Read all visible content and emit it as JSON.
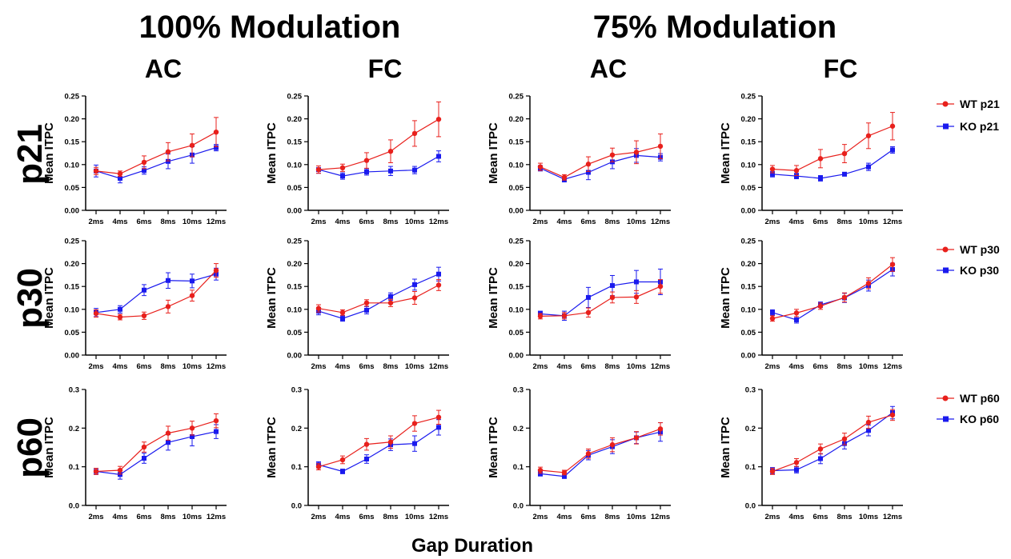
{
  "header": {
    "modulation": [
      "100% Modulation",
      "75% Modulation"
    ],
    "regions": [
      "AC",
      "FC",
      "AC",
      "FC"
    ],
    "ages": [
      "p21",
      "p30",
      "p60"
    ]
  },
  "xlabel_global": "Gap Duration",
  "colors": {
    "wt": "#e8201c",
    "ko": "#1a1aee"
  },
  "legends": [
    [
      "WT p21",
      "KO p21"
    ],
    [
      "WT p30",
      "KO p30"
    ],
    [
      "WT p60",
      "KO p60"
    ]
  ],
  "chart_data": [
    {
      "type": "line",
      "panel": "100% AC p21",
      "categories": [
        "2ms",
        "4ms",
        "6ms",
        "8ms",
        "10ms",
        "12ms"
      ],
      "ylabel": "Mean ITPC",
      "ylim": [
        0,
        0.25
      ],
      "yticks": [
        "0.00",
        "0.05",
        "0.10",
        "0.15",
        "0.20",
        "0.25"
      ],
      "series": [
        {
          "name": "WT p21",
          "values": [
            0.086,
            0.08,
            0.105,
            0.128,
            0.142,
            0.171
          ],
          "err": [
            0.008,
            0.006,
            0.014,
            0.02,
            0.025,
            0.032
          ]
        },
        {
          "name": "KO p21",
          "values": [
            0.086,
            0.07,
            0.087,
            0.107,
            0.121,
            0.137
          ],
          "err": [
            0.013,
            0.01,
            0.008,
            0.016,
            0.018,
            0.007
          ]
        }
      ]
    },
    {
      "type": "line",
      "panel": "100% FC p21",
      "categories": [
        "2ms",
        "4ms",
        "6ms",
        "8ms",
        "10ms",
        "12ms"
      ],
      "ylabel": "Mean ITPC",
      "ylim": [
        0,
        0.25
      ],
      "yticks": [
        "0.00",
        "0.05",
        "0.10",
        "0.15",
        "0.20",
        "0.25"
      ],
      "series": [
        {
          "name": "WT p21",
          "values": [
            0.089,
            0.093,
            0.109,
            0.129,
            0.168,
            0.199
          ],
          "err": [
            0.008,
            0.008,
            0.017,
            0.025,
            0.028,
            0.038
          ]
        },
        {
          "name": "KO p21",
          "values": [
            0.089,
            0.075,
            0.084,
            0.086,
            0.088,
            0.118
          ],
          "err": [
            0.008,
            0.007,
            0.007,
            0.01,
            0.008,
            0.012
          ]
        }
      ]
    },
    {
      "type": "line",
      "panel": "75% AC p21",
      "categories": [
        "2ms",
        "4ms",
        "6ms",
        "8ms",
        "10ms",
        "12ms"
      ],
      "ylabel": "Mean ITPC",
      "ylim": [
        0,
        0.25
      ],
      "yticks": [
        "0.00",
        "0.05",
        "0.10",
        "0.15",
        "0.20",
        "0.25"
      ],
      "series": [
        {
          "name": "WT p21",
          "values": [
            0.095,
            0.072,
            0.101,
            0.121,
            0.127,
            0.14
          ],
          "err": [
            0.008,
            0.006,
            0.016,
            0.015,
            0.025,
            0.027
          ]
        },
        {
          "name": "KO p21",
          "values": [
            0.092,
            0.068,
            0.083,
            0.106,
            0.12,
            0.116
          ],
          "err": [
            0.006,
            0.006,
            0.016,
            0.015,
            0.015,
            0.008
          ]
        }
      ]
    },
    {
      "type": "line",
      "panel": "75% FC p21",
      "categories": [
        "2ms",
        "4ms",
        "6ms",
        "8ms",
        "10ms",
        "12ms"
      ],
      "ylabel": "Mean ITPC",
      "ylim": [
        0,
        0.25
      ],
      "yticks": [
        "0.00",
        "0.05",
        "0.10",
        "0.15",
        "0.20",
        "0.25"
      ],
      "series": [
        {
          "name": "WT p21",
          "values": [
            0.09,
            0.087,
            0.113,
            0.124,
            0.163,
            0.184
          ],
          "err": [
            0.008,
            0.011,
            0.02,
            0.02,
            0.028,
            0.03
          ]
        },
        {
          "name": "KO p21",
          "values": [
            0.079,
            0.075,
            0.07,
            0.079,
            0.095,
            0.132
          ],
          "err": [
            0.006,
            0.006,
            0.006,
            0.004,
            0.008,
            0.007
          ]
        }
      ]
    },
    {
      "type": "line",
      "panel": "100% AC p30",
      "categories": [
        "2ms",
        "4ms",
        "6ms",
        "8ms",
        "10ms",
        "12ms"
      ],
      "ylabel": "Mean ITPC",
      "ylim": [
        0,
        0.25
      ],
      "yticks": [
        "0.00",
        "0.05",
        "0.10",
        "0.15",
        "0.20",
        "0.25"
      ],
      "series": [
        {
          "name": "WT p30",
          "values": [
            0.091,
            0.083,
            0.086,
            0.106,
            0.13,
            0.185
          ],
          "err": [
            0.008,
            0.006,
            0.008,
            0.014,
            0.012,
            0.015
          ]
        },
        {
          "name": "KO p30",
          "values": [
            0.093,
            0.1,
            0.142,
            0.163,
            0.162,
            0.177
          ],
          "err": [
            0.009,
            0.008,
            0.012,
            0.017,
            0.015,
            0.013
          ]
        }
      ]
    },
    {
      "type": "line",
      "panel": "100% FC p30",
      "categories": [
        "2ms",
        "4ms",
        "6ms",
        "8ms",
        "10ms",
        "12ms"
      ],
      "ylabel": "Mean ITPC",
      "ylim": [
        0,
        0.25
      ],
      "yticks": [
        "0.00",
        "0.05",
        "0.10",
        "0.15",
        "0.20",
        "0.25"
      ],
      "series": [
        {
          "name": "WT p30",
          "values": [
            0.102,
            0.093,
            0.114,
            0.114,
            0.125,
            0.153
          ],
          "err": [
            0.008,
            0.006,
            0.007,
            0.008,
            0.014,
            0.012
          ]
        },
        {
          "name": "KO p30",
          "values": [
            0.096,
            0.08,
            0.098,
            0.128,
            0.154,
            0.177
          ],
          "err": [
            0.008,
            0.006,
            0.008,
            0.008,
            0.012,
            0.015
          ]
        }
      ]
    },
    {
      "type": "line",
      "panel": "75% AC p30",
      "categories": [
        "2ms",
        "4ms",
        "6ms",
        "8ms",
        "10ms",
        "12ms"
      ],
      "ylabel": "Mean ITPC",
      "ylim": [
        0,
        0.25
      ],
      "yticks": [
        "0.00",
        "0.05",
        "0.10",
        "0.15",
        "0.20",
        "0.25"
      ],
      "series": [
        {
          "name": "WT p30",
          "values": [
            0.085,
            0.086,
            0.093,
            0.126,
            0.127,
            0.15
          ],
          "err": [
            0.006,
            0.007,
            0.01,
            0.012,
            0.014,
            0.015
          ]
        },
        {
          "name": "KO p30",
          "values": [
            0.09,
            0.086,
            0.126,
            0.152,
            0.16,
            0.16
          ],
          "err": [
            0.006,
            0.01,
            0.022,
            0.022,
            0.025,
            0.028
          ]
        }
      ]
    },
    {
      "type": "line",
      "panel": "75% FC p30",
      "categories": [
        "2ms",
        "4ms",
        "6ms",
        "8ms",
        "10ms",
        "12ms"
      ],
      "ylabel": "Mean ITPC",
      "ylim": [
        0,
        0.25
      ],
      "yticks": [
        "0.00",
        "0.05",
        "0.10",
        "0.15",
        "0.20",
        "0.25"
      ],
      "series": [
        {
          "name": "WT p30",
          "values": [
            0.08,
            0.092,
            0.107,
            0.126,
            0.157,
            0.198
          ],
          "err": [
            0.006,
            0.008,
            0.007,
            0.01,
            0.012,
            0.015
          ]
        },
        {
          "name": "KO p30",
          "values": [
            0.093,
            0.077,
            0.11,
            0.125,
            0.152,
            0.187
          ],
          "err": [
            0.006,
            0.007,
            0.006,
            0.01,
            0.012,
            0.014
          ]
        }
      ]
    },
    {
      "type": "line",
      "panel": "100% AC p60",
      "categories": [
        "2ms",
        "4ms",
        "6ms",
        "8ms",
        "10ms",
        "12ms"
      ],
      "ylabel": "Mean ITPC",
      "ylim": [
        0,
        0.3
      ],
      "yticks": [
        "0.0",
        "0.1",
        "0.2",
        "0.3"
      ],
      "series": [
        {
          "name": "WT p60",
          "values": [
            0.088,
            0.091,
            0.151,
            0.187,
            0.2,
            0.219
          ],
          "err": [
            0.008,
            0.01,
            0.013,
            0.018,
            0.018,
            0.018
          ]
        },
        {
          "name": "KO p60",
          "values": [
            0.088,
            0.08,
            0.122,
            0.163,
            0.178,
            0.191
          ],
          "err": [
            0.008,
            0.012,
            0.013,
            0.02,
            0.024,
            0.018
          ]
        }
      ]
    },
    {
      "type": "line",
      "panel": "100% FC p60",
      "categories": [
        "2ms",
        "4ms",
        "6ms",
        "8ms",
        "10ms",
        "12ms"
      ],
      "ylabel": "Mean ITPC",
      "ylim": [
        0,
        0.3
      ],
      "yticks": [
        "0.0",
        "0.1",
        "0.2",
        "0.3"
      ],
      "series": [
        {
          "name": "WT p60",
          "values": [
            0.1,
            0.118,
            0.158,
            0.164,
            0.212,
            0.228
          ],
          "err": [
            0.008,
            0.01,
            0.015,
            0.016,
            0.02,
            0.018
          ]
        },
        {
          "name": "KO p60",
          "values": [
            0.105,
            0.088,
            0.12,
            0.157,
            0.16,
            0.202
          ],
          "err": [
            0.008,
            0.006,
            0.011,
            0.015,
            0.02,
            0.02
          ]
        }
      ]
    },
    {
      "type": "line",
      "panel": "75% AC p60",
      "categories": [
        "2ms",
        "4ms",
        "6ms",
        "8ms",
        "10ms",
        "12ms"
      ],
      "ylabel": "Mean ITPC",
      "ylim": [
        0,
        0.3
      ],
      "yticks": [
        "0.0",
        "0.1",
        "0.2",
        "0.3"
      ],
      "series": [
        {
          "name": "WT p60",
          "values": [
            0.091,
            0.085,
            0.134,
            0.157,
            0.175,
            0.198
          ],
          "err": [
            0.008,
            0.006,
            0.012,
            0.018,
            0.016,
            0.016
          ]
        },
        {
          "name": "KO p60",
          "values": [
            0.082,
            0.075,
            0.13,
            0.152,
            0.175,
            0.19
          ],
          "err": [
            0.006,
            0.005,
            0.012,
            0.018,
            0.015,
            0.024
          ]
        }
      ]
    },
    {
      "type": "line",
      "panel": "75% FC p60",
      "categories": [
        "2ms",
        "4ms",
        "6ms",
        "8ms",
        "10ms",
        "12ms"
      ],
      "ylabel": "Mean ITPC",
      "ylim": [
        0,
        0.3
      ],
      "yticks": [
        "0.0",
        "0.1",
        "0.2",
        "0.3"
      ],
      "series": [
        {
          "name": "WT p60",
          "values": [
            0.088,
            0.111,
            0.146,
            0.172,
            0.215,
            0.234
          ],
          "err": [
            0.008,
            0.01,
            0.013,
            0.015,
            0.016,
            0.014
          ]
        },
        {
          "name": "KO p60",
          "values": [
            0.09,
            0.092,
            0.121,
            0.16,
            0.194,
            0.24
          ],
          "err": [
            0.008,
            0.008,
            0.013,
            0.014,
            0.014,
            0.016
          ]
        }
      ]
    }
  ]
}
